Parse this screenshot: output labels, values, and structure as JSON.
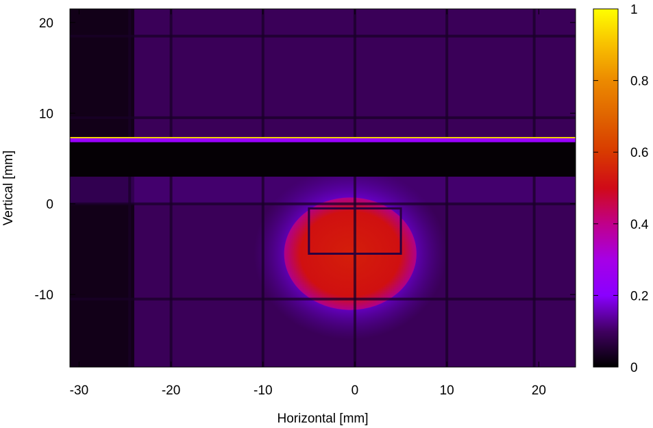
{
  "chart_data": {
    "type": "heatmap",
    "title": "",
    "xlabel": "Horizontal [mm]",
    "ylabel": "Vertical [mm]",
    "xlim": [
      -31,
      24
    ],
    "ylim": [
      -18,
      21.5
    ],
    "x_ticks": [
      -30,
      -20,
      -10,
      0,
      10,
      20
    ],
    "y_ticks": [
      20,
      10,
      0,
      -10
    ],
    "x_tick_labels": [
      "-30",
      "-20",
      "-10",
      "0",
      "10",
      "20"
    ],
    "y_tick_labels": [
      "20",
      "10",
      "0",
      "-10"
    ],
    "colorbar": {
      "range": [
        0,
        1
      ],
      "ticks": [
        0,
        0.2,
        0.4,
        0.6,
        0.8,
        1
      ],
      "tick_labels": [
        "0",
        "0.2",
        "0.4",
        "0.6",
        "0.8",
        "1"
      ],
      "colormap": "black-purple-red-orange-yellow",
      "stops": [
        {
          "v": 0.0,
          "color": "#000000"
        },
        {
          "v": 0.1,
          "color": "#400060"
        },
        {
          "v": 0.2,
          "color": "#8a00ff"
        },
        {
          "v": 0.3,
          "color": "#a600e6"
        },
        {
          "v": 0.4,
          "color": "#c0008a"
        },
        {
          "v": 0.5,
          "color": "#d00a18"
        },
        {
          "v": 0.6,
          "color": "#d83a00"
        },
        {
          "v": 0.7,
          "color": "#e06400"
        },
        {
          "v": 0.8,
          "color": "#ec8a00"
        },
        {
          "v": 0.9,
          "color": "#f8c000"
        },
        {
          "v": 1.0,
          "color": "#ffff00"
        }
      ]
    },
    "background_level": 0.08,
    "features": {
      "bright_beam": {
        "y_top": 7.3,
        "y_bottom": 6.8,
        "peak": 1.0,
        "level": 0.22
      },
      "dark_band": {
        "y_top": 6.8,
        "y_bottom": 3.0,
        "level": 0.0
      },
      "left_dark_region": {
        "x_max": -24,
        "y_max": 21.5,
        "level": 0.02
      },
      "hot_spot": {
        "center_x": -0.5,
        "center_y": -5.5,
        "core_level": 0.5,
        "halo_level": 0.22
      },
      "inner_frame": {
        "x_min": -5.0,
        "x_max": 5.0,
        "y_min": -5.5,
        "y_max": -0.5
      },
      "grid_lines_x": [
        -24.5,
        -20,
        -10,
        0,
        10,
        19.5
      ],
      "grid_lines_y": [
        18.5,
        9.5,
        0,
        -10.5
      ]
    }
  }
}
